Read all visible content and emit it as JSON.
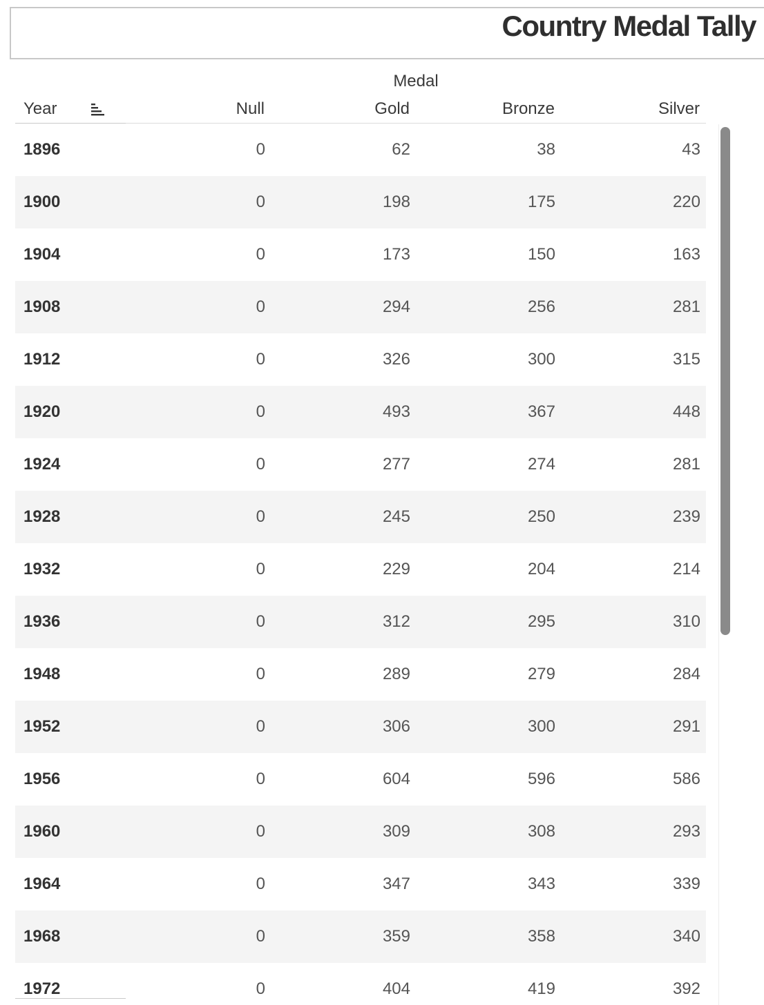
{
  "title": "Country Medal Tally",
  "table": {
    "column_group_label": "Medal",
    "columns": {
      "year": "Year",
      "null": "Null",
      "gold": "Gold",
      "bronze": "Bronze",
      "silver": "Silver"
    },
    "rows": [
      {
        "year": "1896",
        "null": "0",
        "gold": "62",
        "bronze": "38",
        "silver": "43"
      },
      {
        "year": "1900",
        "null": "0",
        "gold": "198",
        "bronze": "175",
        "silver": "220"
      },
      {
        "year": "1904",
        "null": "0",
        "gold": "173",
        "bronze": "150",
        "silver": "163"
      },
      {
        "year": "1908",
        "null": "0",
        "gold": "294",
        "bronze": "256",
        "silver": "281"
      },
      {
        "year": "1912",
        "null": "0",
        "gold": "326",
        "bronze": "300",
        "silver": "315"
      },
      {
        "year": "1920",
        "null": "0",
        "gold": "493",
        "bronze": "367",
        "silver": "448"
      },
      {
        "year": "1924",
        "null": "0",
        "gold": "277",
        "bronze": "274",
        "silver": "281"
      },
      {
        "year": "1928",
        "null": "0",
        "gold": "245",
        "bronze": "250",
        "silver": "239"
      },
      {
        "year": "1932",
        "null": "0",
        "gold": "229",
        "bronze": "204",
        "silver": "214"
      },
      {
        "year": "1936",
        "null": "0",
        "gold": "312",
        "bronze": "295",
        "silver": "310"
      },
      {
        "year": "1948",
        "null": "0",
        "gold": "289",
        "bronze": "279",
        "silver": "284"
      },
      {
        "year": "1952",
        "null": "0",
        "gold": "306",
        "bronze": "300",
        "silver": "291"
      },
      {
        "year": "1956",
        "null": "0",
        "gold": "604",
        "bronze": "596",
        "silver": "586"
      },
      {
        "year": "1960",
        "null": "0",
        "gold": "309",
        "bronze": "308",
        "silver": "293"
      },
      {
        "year": "1964",
        "null": "0",
        "gold": "347",
        "bronze": "343",
        "silver": "339"
      },
      {
        "year": "1968",
        "null": "0",
        "gold": "359",
        "bronze": "358",
        "silver": "340"
      },
      {
        "year": "1972",
        "null": "0",
        "gold": "404",
        "bronze": "419",
        "silver": "392"
      }
    ]
  },
  "icons": {
    "sort": "sort-descending-icon"
  },
  "colors": {
    "row_alt_background": "#f4f4f4",
    "scrollbar_thumb": "#8a8a8a"
  }
}
